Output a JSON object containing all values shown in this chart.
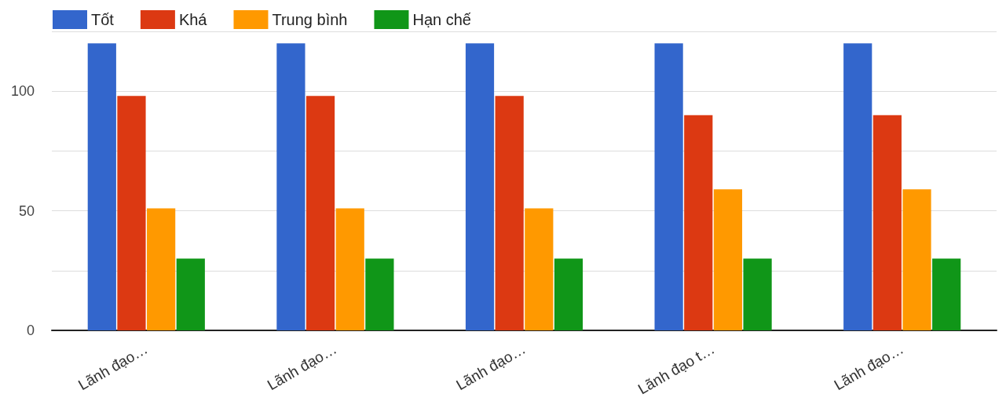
{
  "chart_data": {
    "type": "bar",
    "categories": [
      "Lãnh đạo…",
      "Lãnh đạo…",
      "Lãnh đạo…",
      "Lãnh đạo t…",
      "Lãnh đạo…"
    ],
    "series": [
      {
        "name": "Tốt",
        "color": "#3366cc",
        "values": [
          120,
          120,
          120,
          120,
          120
        ]
      },
      {
        "name": "Khá",
        "color": "#dc3912",
        "values": [
          98,
          98,
          98,
          90,
          90
        ]
      },
      {
        "name": "Trung bình",
        "color": "#ff9900",
        "values": [
          51,
          51,
          51,
          59,
          59
        ]
      },
      {
        "name": "Hạn chế",
        "color": "#109618",
        "values": [
          30,
          30,
          30,
          30,
          30
        ]
      }
    ],
    "ylim": [
      0,
      125
    ],
    "yticks": [
      0,
      {
        "value": 25,
        "label": null
      },
      50,
      {
        "value": 75,
        "label": null
      },
      100,
      {
        "value": 125,
        "label": null
      }
    ],
    "grid": "y",
    "legend": "top left"
  }
}
